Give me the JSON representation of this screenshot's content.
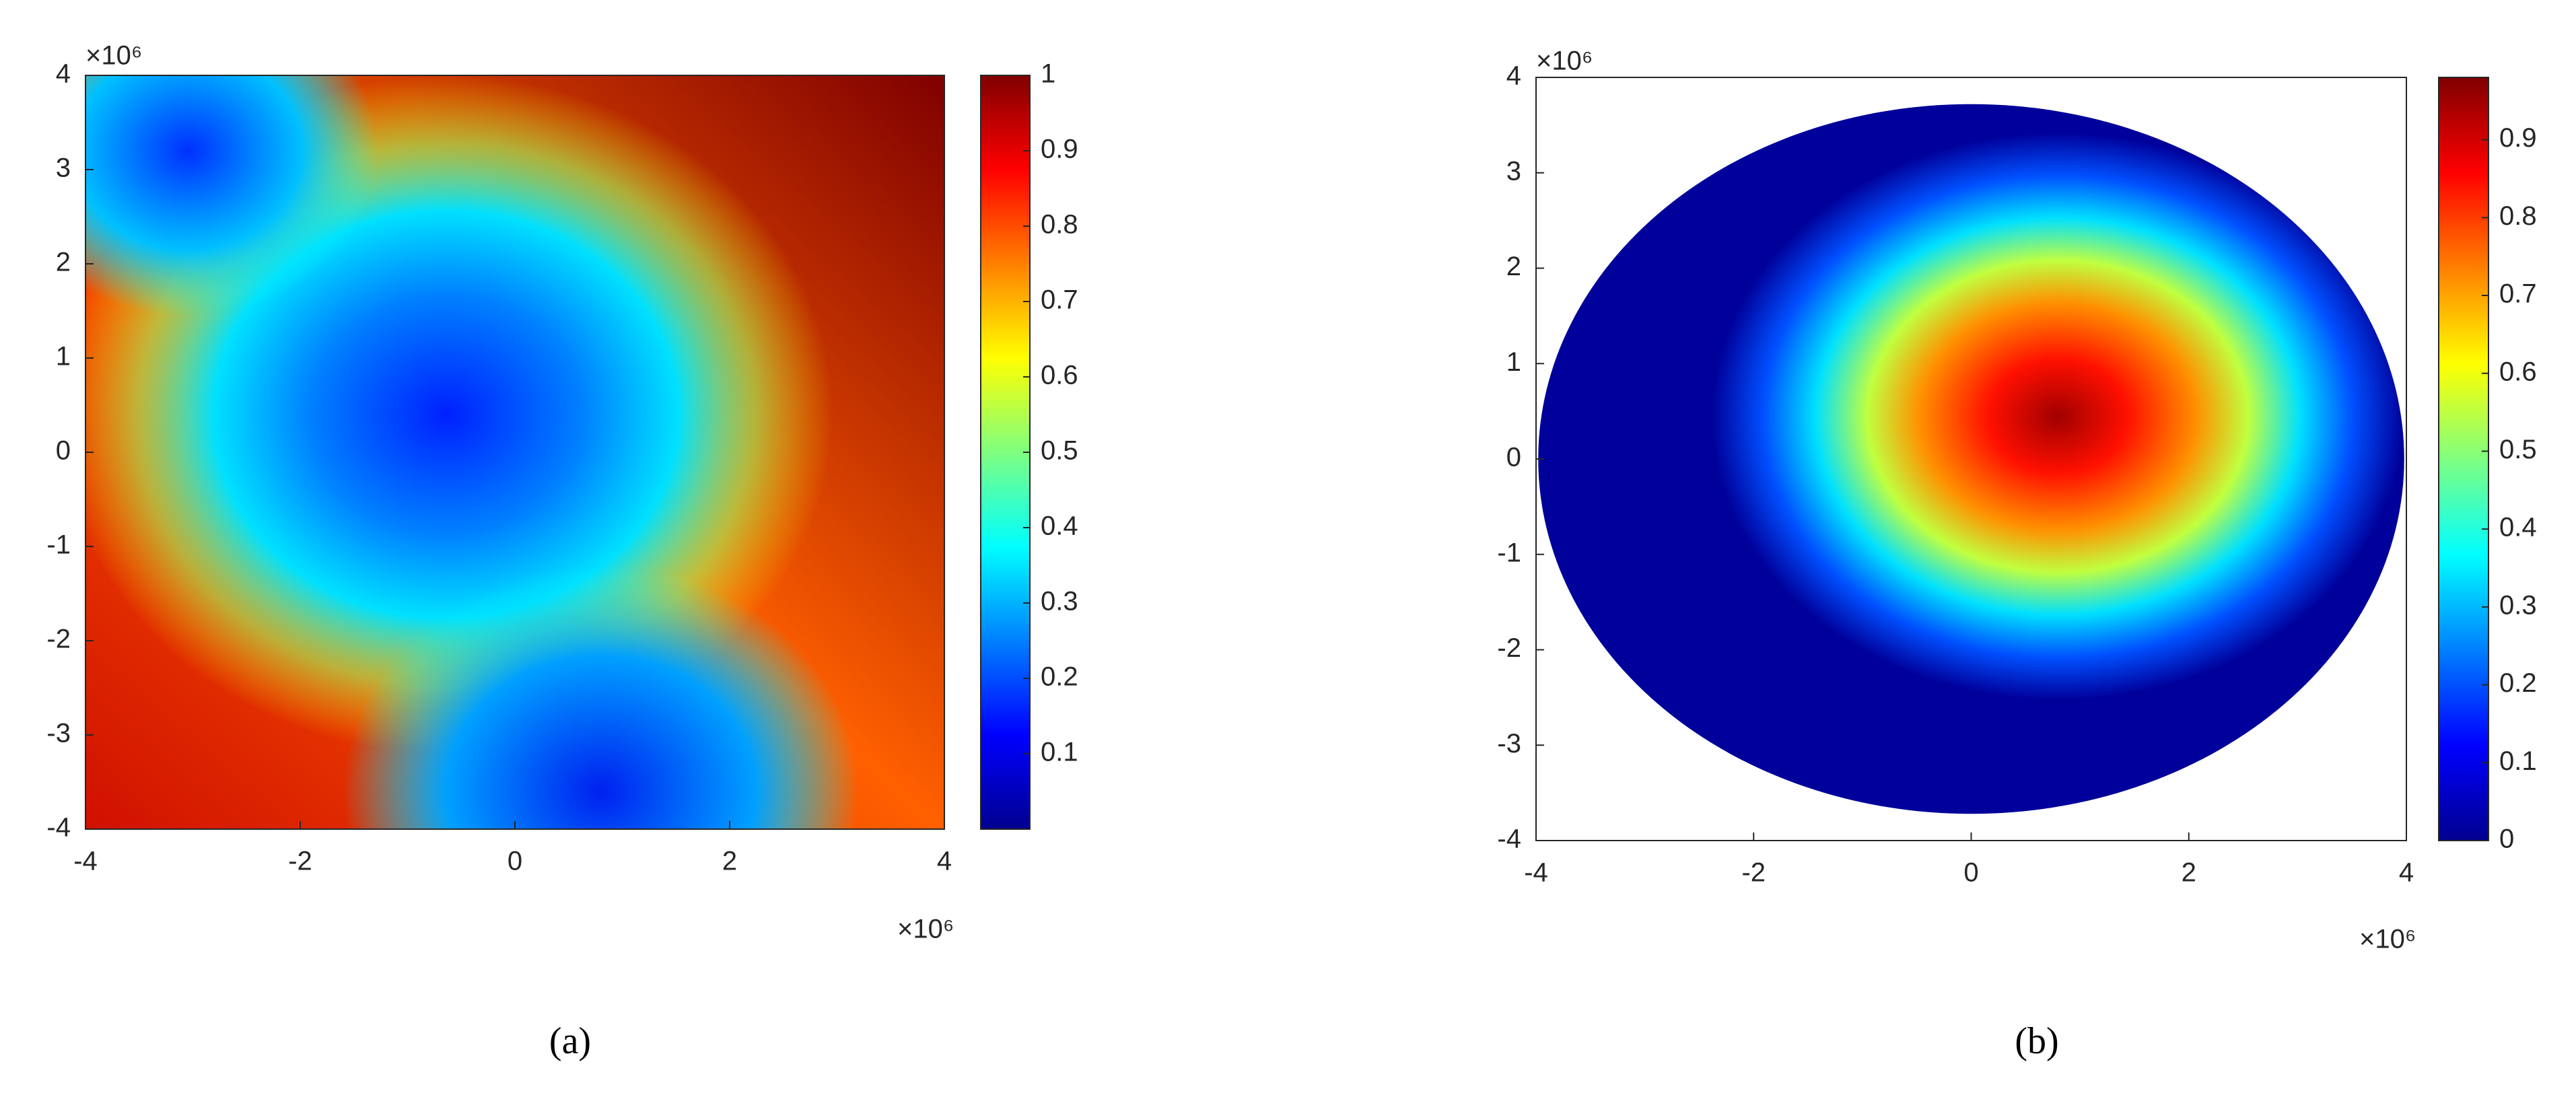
{
  "chart_data": [
    {
      "type": "heatmap",
      "caption": "(a)",
      "xlim": [
        -4,
        4
      ],
      "ylim": [
        -4,
        4
      ],
      "xticks": [
        -4,
        -2,
        0,
        2,
        4
      ],
      "yticks": [
        -4,
        -3,
        -2,
        -1,
        0,
        1,
        2,
        3,
        4
      ],
      "x_exponent": "×10⁶",
      "y_exponent": "×10⁶",
      "colormap": "jet",
      "clim": [
        0,
        1
      ],
      "cticks": [
        0.1,
        0.2,
        0.3,
        0.4,
        0.5,
        0.6,
        0.7,
        0.8,
        0.9,
        1
      ],
      "domain_shape": "square"
    },
    {
      "type": "heatmap",
      "caption": "(b)",
      "xlim": [
        -4,
        4
      ],
      "ylim": [
        -4,
        4
      ],
      "xticks": [
        -4,
        -2,
        0,
        2,
        4
      ],
      "yticks": [
        -4,
        -3,
        -2,
        -1,
        0,
        1,
        2,
        3,
        4
      ],
      "x_exponent": "×10⁶",
      "y_exponent": "×10⁶",
      "colormap": "jet",
      "clim": [
        0,
        0.98
      ],
      "cticks": [
        0,
        0.1,
        0.2,
        0.3,
        0.4,
        0.5,
        0.6,
        0.7,
        0.8,
        0.9
      ],
      "domain_shape": "circle"
    }
  ]
}
